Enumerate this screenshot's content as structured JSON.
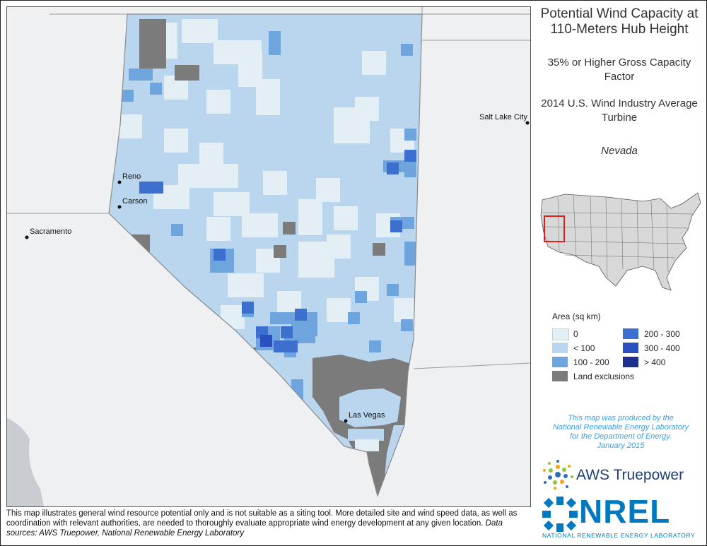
{
  "title": "Potential Wind Capacity at 110-Meters Hub Height",
  "subtitle_1": "35% or Higher Gross Capacity Factor",
  "subtitle_2": "2014 U.S. Wind Industry Average Turbine",
  "state": "Nevada",
  "cities": [
    {
      "name": "Reno"
    },
    {
      "name": "Carson"
    },
    {
      "name": "Sacramento"
    },
    {
      "name": "Salt Lake City"
    },
    {
      "name": "Las Vegas"
    }
  ],
  "legend": {
    "title": "Area (sq km)",
    "items": [
      {
        "label": "0",
        "color": "#e4eff5"
      },
      {
        "label": "< 100",
        "color": "#b9d6ee"
      },
      {
        "label": "100 - 200",
        "color": "#6fa5de"
      },
      {
        "label": "200 - 300",
        "color": "#3d6fcf"
      },
      {
        "label": "300 - 400",
        "color": "#2a4fbe"
      },
      {
        "label": "> 400",
        "color": "#1d2f8f"
      },
      {
        "label": "Land exclusions",
        "color": "#7b7b7b"
      }
    ]
  },
  "credit": [
    "This map was produced by the",
    "National Renewable Energy Laboratory",
    "for the Department of Energy.",
    "January 2015"
  ],
  "logos": {
    "aws": "AWS Truepower",
    "nrel": "NREL",
    "nrel_full": "NATIONAL RENEWABLE ENERGY LABORATORY"
  },
  "disclaimer": "This map illustrates general wind resource potential only and is not suitable as a siting tool. More detailed site and wind speed data, as well as coordination with relevant authorities, are needed to thoroughly evaluate appropriate wind energy development at any given location.",
  "data_sources": "Data sources: AWS Truepower, National Renewable Energy Laboratory",
  "colors": {
    "base": "#b9d6ee",
    "zero": "#e4eff5",
    "c100": "#6fa5de",
    "c200": "#3d6fcf",
    "c300": "#2a4fbe",
    "exclusion": "#7b7b7b",
    "inset_highlight": "#e02020"
  }
}
